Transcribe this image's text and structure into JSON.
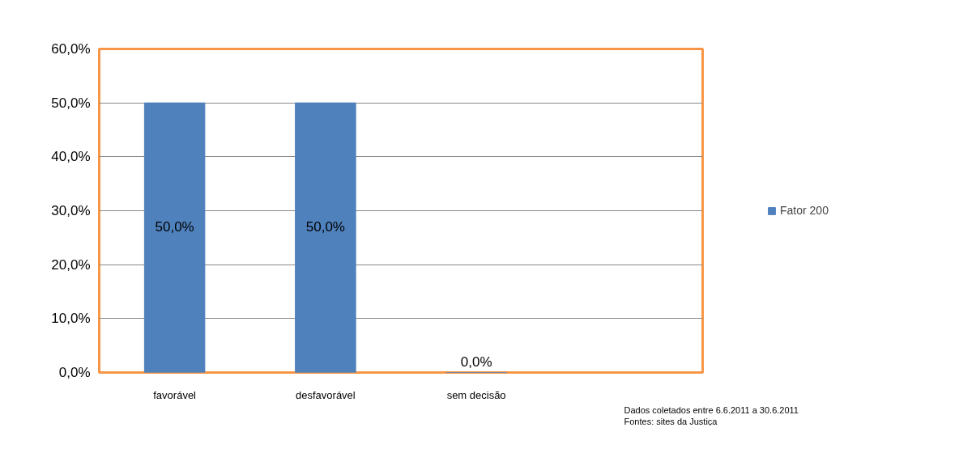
{
  "chart_data": {
    "type": "bar",
    "categories": [
      "favorável",
      "desfavorável",
      "sem decisão",
      null
    ],
    "series": [
      {
        "name": "Fator 200",
        "color": "#4f81bd",
        "values": [
          50.0,
          50.0,
          0.0,
          null
        ],
        "value_labels": [
          "50,0%",
          "50,0%",
          "0,0%",
          null
        ]
      }
    ],
    "ylim": [
      0,
      60
    ],
    "yticks": [
      {
        "value": 0,
        "label": "0,0%"
      },
      {
        "value": 10,
        "label": "10,0%"
      },
      {
        "value": 20,
        "label": "20,0%"
      },
      {
        "value": 30,
        "label": "30,0%"
      },
      {
        "value": 40,
        "label": "40,0%"
      },
      {
        "value": 50,
        "label": "50,0%"
      },
      {
        "value": 60,
        "label": "60,0%"
      }
    ],
    "grid": "y",
    "legend": "right",
    "annotations": [
      "Dados coletados entre 6.6.2011 a 30.6.2011",
      "Fontes: sites da Justiça"
    ]
  }
}
